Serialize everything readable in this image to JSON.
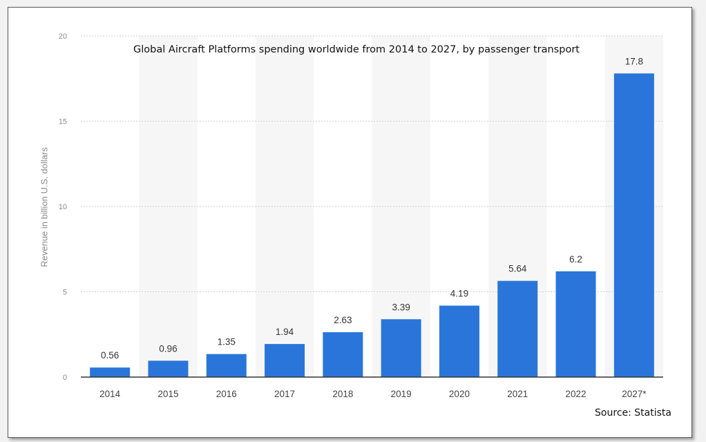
{
  "chart_data": {
    "type": "bar",
    "title": "Global Aircraft Platforms spending worldwide from 2014 to 2027, by passenger transport",
    "xlabel": "",
    "ylabel": "Revenue in billion U.S. dollars",
    "categories": [
      "2014",
      "2015",
      "2016",
      "2017",
      "2018",
      "2019",
      "2020",
      "2021",
      "2022",
      "2027*"
    ],
    "values": [
      0.56,
      0.96,
      1.35,
      1.94,
      2.63,
      3.39,
      4.19,
      5.64,
      6.2,
      17.8
    ],
    "value_labels": [
      "0.56",
      "0.96",
      "1.35",
      "1.94",
      "2.63",
      "3.39",
      "4.19",
      "5.64",
      "6.2",
      "17.8"
    ],
    "ylim": [
      0,
      20
    ],
    "yticks": [
      "0",
      "5",
      "10",
      "15",
      "20"
    ],
    "grid": true,
    "bar_color": "#2a75d9",
    "source": "Source: Statista"
  }
}
